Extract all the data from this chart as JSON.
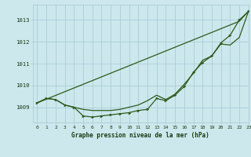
{
  "title": "Graphe pression niveau de la mer (hPa)",
  "bg_color": "#cce8ed",
  "line_color": "#2d5a1b",
  "grid_color": "#aacdd6",
  "text_color": "#1a3a10",
  "xlim": [
    -0.5,
    23
  ],
  "ylim": [
    1008.3,
    1013.7
  ],
  "yticks": [
    1009,
    1010,
    1011,
    1012,
    1013
  ],
  "xticks": [
    0,
    1,
    2,
    3,
    4,
    5,
    6,
    7,
    8,
    9,
    10,
    11,
    12,
    13,
    14,
    15,
    16,
    17,
    18,
    19,
    20,
    21,
    22,
    23
  ],
  "series": {
    "line_straight": [
      1009.2,
      1009.37,
      1009.54,
      1009.71,
      1009.88,
      1010.05,
      1010.22,
      1010.39,
      1010.56,
      1010.73,
      1010.9,
      1011.07,
      1011.24,
      1011.41,
      1011.58,
      1011.75,
      1011.92,
      1012.09,
      1012.26,
      1012.43,
      1012.6,
      1012.77,
      1012.94,
      1013.4
    ],
    "line_mid": [
      1009.2,
      1009.4,
      1009.35,
      1009.1,
      1009.0,
      1008.9,
      1008.85,
      1008.85,
      1008.85,
      1008.9,
      1009.0,
      1009.1,
      1009.3,
      1009.55,
      1009.35,
      1009.6,
      1010.05,
      1010.55,
      1011.15,
      1011.35,
      1011.9,
      1011.85,
      1012.2,
      1013.4
    ],
    "line_detail": [
      1009.2,
      1009.4,
      1009.35,
      1009.1,
      1009.0,
      1008.6,
      1008.55,
      1008.6,
      1008.65,
      1008.7,
      1008.75,
      1008.85,
      1008.9,
      1009.4,
      1009.3,
      1009.55,
      1009.95,
      1010.6,
      1011.05,
      1011.35,
      1011.95,
      1012.3,
      1013.0,
      1013.4
    ]
  }
}
